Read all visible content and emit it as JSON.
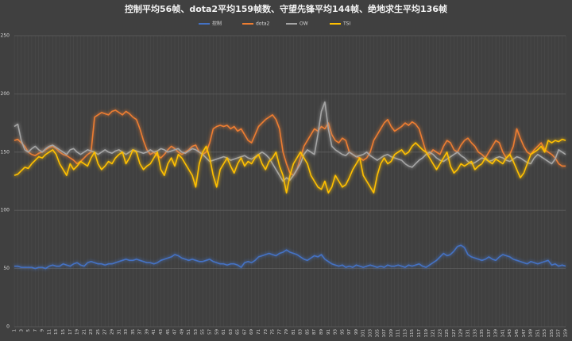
{
  "chart_data": {
    "type": "line",
    "title": "控制平均56帧、dota2平均159帧数、守望先锋平均144帧、绝地求生平均136帧",
    "categories": [
      1,
      null,
      3,
      null,
      5,
      null,
      7,
      null,
      9,
      null,
      11,
      null,
      13,
      null,
      15,
      null,
      17,
      null,
      19,
      null,
      21,
      null,
      23,
      null,
      25,
      null,
      27,
      null,
      29,
      null,
      31,
      null,
      33,
      null,
      35,
      null,
      37,
      null,
      39,
      null,
      41,
      null,
      43,
      null,
      45,
      null,
      47,
      null,
      49,
      null,
      51,
      null,
      53,
      null,
      55,
      null,
      57,
      null,
      59,
      null,
      61,
      null,
      63,
      null,
      65,
      null,
      67,
      null,
      69,
      null,
      71,
      null,
      73,
      null,
      75,
      null,
      77,
      null,
      79,
      null,
      81,
      null,
      83,
      null,
      85,
      null,
      87,
      null,
      89,
      null,
      91,
      null,
      93,
      null,
      95,
      null,
      97,
      null,
      99,
      null,
      101,
      null,
      103,
      null,
      105,
      null,
      107,
      null,
      109,
      null,
      111,
      null,
      113,
      null,
      115,
      null,
      117,
      null,
      119,
      null,
      121,
      null,
      123,
      null,
      125,
      null,
      127,
      null,
      129,
      null,
      131,
      null,
      133,
      null,
      135,
      null,
      137,
      null,
      139,
      null,
      141,
      null,
      143,
      null,
      145,
      null,
      147,
      null,
      149,
      null,
      151,
      null,
      153,
      null,
      155,
      null,
      157,
      null,
      159
    ],
    "series": [
      {
        "name": "控制",
        "color": "#4472c4",
        "values": [
          52,
          52,
          51,
          51,
          51,
          51,
          50,
          51,
          51,
          50,
          52,
          53,
          52,
          52,
          54,
          53,
          52,
          54,
          55,
          53,
          52,
          55,
          56,
          55,
          54,
          54,
          53,
          54,
          54,
          55,
          56,
          57,
          58,
          57,
          57,
          58,
          57,
          56,
          55,
          55,
          54,
          55,
          57,
          58,
          59,
          60,
          62,
          61,
          59,
          58,
          57,
          58,
          57,
          56,
          56,
          57,
          58,
          56,
          55,
          54,
          54,
          53,
          54,
          54,
          53,
          51,
          55,
          56,
          55,
          57,
          60,
          61,
          62,
          63,
          62,
          61,
          63,
          64,
          66,
          64,
          63,
          62,
          60,
          58,
          57,
          59,
          61,
          60,
          62,
          58,
          56,
          54,
          53,
          52,
          53,
          51,
          52,
          51,
          53,
          52,
          51,
          52,
          53,
          52,
          51,
          52,
          51,
          53,
          52,
          52,
          53,
          52,
          51,
          53,
          52,
          53,
          54,
          52,
          51,
          53,
          55,
          57,
          60,
          63,
          61,
          62,
          65,
          69,
          70,
          68,
          62,
          60,
          59,
          58,
          57,
          58,
          60,
          58,
          57,
          60,
          62,
          61,
          60,
          58,
          57,
          56,
          55,
          54,
          56,
          55,
          54,
          55,
          56,
          57,
          53,
          54,
          52,
          53,
          52
        ]
      },
      {
        "name": "dota2",
        "color": "#ed7d31",
        "values": [
          160,
          161,
          158,
          155,
          150,
          148,
          147,
          149,
          150,
          152,
          154,
          155,
          153,
          150,
          148,
          147,
          145,
          143,
          140,
          142,
          145,
          148,
          150,
          180,
          182,
          184,
          183,
          182,
          185,
          186,
          184,
          182,
          185,
          183,
          180,
          178,
          170,
          160,
          152,
          148,
          150,
          147,
          145,
          148,
          152,
          155,
          153,
          150,
          148,
          150,
          152,
          155,
          156,
          150,
          148,
          150,
          158,
          170,
          172,
          173,
          172,
          173,
          170,
          172,
          168,
          170,
          165,
          160,
          158,
          165,
          172,
          175,
          178,
          180,
          182,
          178,
          170,
          150,
          140,
          132,
          130,
          135,
          145,
          155,
          160,
          165,
          170,
          168,
          172,
          170,
          175,
          165,
          160,
          158,
          162,
          160,
          150,
          148,
          146,
          145,
          143,
          145,
          150,
          160,
          165,
          170,
          175,
          178,
          172,
          168,
          170,
          172,
          175,
          173,
          176,
          174,
          170,
          160,
          150,
          148,
          152,
          150,
          148,
          155,
          160,
          158,
          152,
          150,
          156,
          160,
          162,
          158,
          155,
          150,
          148,
          145,
          150,
          155,
          160,
          158,
          150,
          145,
          148,
          155,
          170,
          162,
          155,
          150,
          148,
          152,
          155,
          158,
          152,
          150,
          148,
          145,
          140,
          138,
          138
        ]
      },
      {
        "name": "OW",
        "color": "#a5a5a5",
        "values": [
          172,
          174,
          160,
          152,
          150,
          153,
          155,
          152,
          150,
          153,
          155,
          156,
          154,
          152,
          150,
          148,
          152,
          153,
          150,
          148,
          150,
          152,
          151,
          150,
          148,
          150,
          152,
          150,
          149,
          151,
          152,
          150,
          148,
          150,
          152,
          151,
          150,
          149,
          150,
          152,
          150,
          151,
          153,
          152,
          150,
          151,
          152,
          153,
          150,
          149,
          151,
          153,
          152,
          150,
          148,
          145,
          142,
          143,
          144,
          145,
          146,
          145,
          143,
          144,
          145,
          146,
          147,
          145,
          144,
          146,
          148,
          150,
          148,
          145,
          140,
          135,
          130,
          125,
          128,
          126,
          130,
          135,
          140,
          148,
          152,
          150,
          148,
          165,
          185,
          193,
          170,
          155,
          152,
          150,
          148,
          147,
          150,
          148,
          146,
          147,
          148,
          150,
          147,
          145,
          143,
          145,
          147,
          148,
          146,
          145,
          144,
          143,
          140,
          138,
          137,
          140,
          143,
          145,
          148,
          150,
          148,
          145,
          143,
          142,
          144,
          146,
          148,
          150,
          147,
          145,
          142,
          140,
          141,
          143,
          145,
          144,
          142,
          143,
          145,
          146,
          145,
          143,
          142,
          144,
          146,
          145,
          143,
          141,
          140,
          145,
          148,
          146,
          144,
          142,
          140,
          144,
          152,
          150,
          148
        ]
      },
      {
        "name": "TSI",
        "color": "#ffc000",
        "values": [
          130,
          131,
          134,
          137,
          136,
          140,
          143,
          146,
          145,
          148,
          150,
          152,
          148,
          140,
          135,
          130,
          140,
          135,
          138,
          142,
          140,
          138,
          145,
          150,
          140,
          135,
          138,
          142,
          140,
          145,
          148,
          150,
          140,
          145,
          152,
          150,
          140,
          135,
          138,
          140,
          145,
          150,
          135,
          130,
          140,
          145,
          138,
          148,
          145,
          140,
          135,
          130,
          120,
          140,
          150,
          155,
          145,
          130,
          120,
          135,
          140,
          145,
          138,
          132,
          140,
          145,
          138,
          142,
          140,
          145,
          148,
          140,
          135,
          142,
          145,
          150,
          138,
          130,
          115,
          130,
          140,
          145,
          150,
          145,
          140,
          130,
          125,
          120,
          118,
          125,
          115,
          120,
          130,
          125,
          120,
          122,
          128,
          135,
          140,
          145,
          130,
          125,
          120,
          115,
          130,
          140,
          145,
          140,
          142,
          148,
          150,
          152,
          148,
          150,
          155,
          158,
          155,
          152,
          150,
          145,
          140,
          135,
          140,
          145,
          150,
          138,
          132,
          135,
          140,
          138,
          140,
          142,
          135,
          138,
          140,
          145,
          142,
          140,
          144,
          142,
          140,
          145,
          148,
          142,
          135,
          128,
          132,
          140,
          148,
          150,
          152,
          155,
          150,
          160,
          158,
          160,
          159,
          161,
          160
        ]
      }
    ],
    "ylim": [
      0,
      250
    ],
    "yticks": [
      0,
      50,
      100,
      150,
      200,
      250
    ],
    "grid": true
  }
}
